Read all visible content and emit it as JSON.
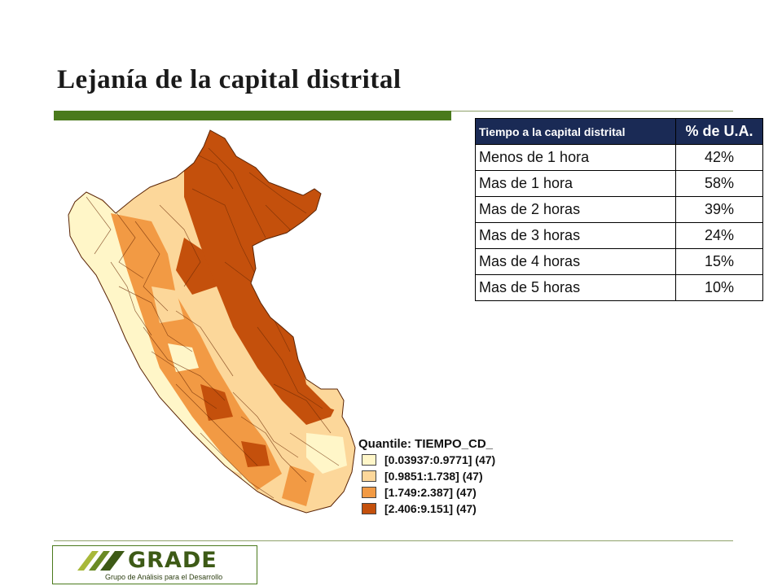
{
  "slide": {
    "title": "Lejanía de la capital distrital"
  },
  "table": {
    "headers": [
      "Tiempo a la capital distrital",
      "% de U.A."
    ],
    "rows": [
      {
        "label": "Menos de 1 hora",
        "value": "42%"
      },
      {
        "label": "Mas de 1 hora",
        "value": "58%"
      },
      {
        "label": "Mas de 2 horas",
        "value": "39%"
      },
      {
        "label": "Mas de 3 horas",
        "value": "24%"
      },
      {
        "label": "Mas de 4 horas",
        "value": "15%"
      },
      {
        "label": "Mas de 5 horas",
        "value": "10%"
      }
    ]
  },
  "legend": {
    "title": "Quantile: TIEMPO_CD_",
    "classes": [
      {
        "label": "[0.03937:0.9771] (47)",
        "color": "#fff6c8"
      },
      {
        "label": "[0.9851:1.738] (47)",
        "color": "#fcd79a"
      },
      {
        "label": "[1.749:2.387] (47)",
        "color": "#f29a44"
      },
      {
        "label": "[2.406:9.151] (47)",
        "color": "#c4500c"
      }
    ]
  },
  "logo": {
    "name": "GRADE",
    "subtitle": "Grupo de Análisis para el Desarrollo"
  },
  "colors": {
    "accent_green": "#4a7a1c",
    "table_header": "#1a2a55"
  }
}
